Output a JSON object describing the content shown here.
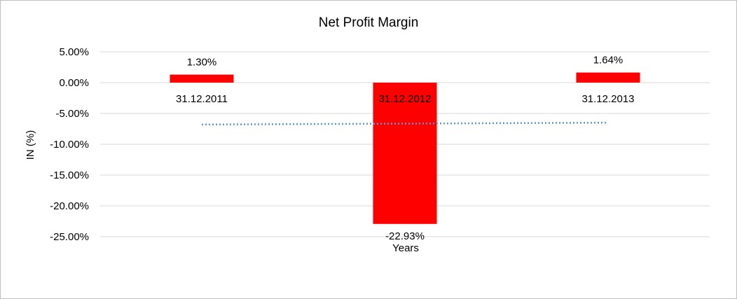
{
  "chart_data": {
    "type": "bar",
    "title": "Net Profit Margin",
    "xlabel": "Years",
    "ylabel": "IN (%)",
    "categories": [
      "31.12.2011",
      "31.12.2012",
      "31.12.2013"
    ],
    "values": [
      1.3,
      -22.93,
      1.64
    ],
    "data_labels": [
      "1.30%",
      "-22.93%",
      "1.64%"
    ],
    "ylim": [
      -25,
      5
    ],
    "yticks": [
      5,
      0,
      -5,
      -10,
      -15,
      -20,
      -25
    ],
    "ytick_labels": [
      "5.00%",
      "0.00%",
      "-5.00%",
      "-10.00%",
      "-15.00%",
      "-20.00%",
      "-25.00%"
    ],
    "grid": true,
    "bar_color": "#ff0000",
    "trendline": {
      "style": "dotted",
      "color": "#5b9bd5",
      "start": -6.8,
      "end": -6.5
    }
  }
}
